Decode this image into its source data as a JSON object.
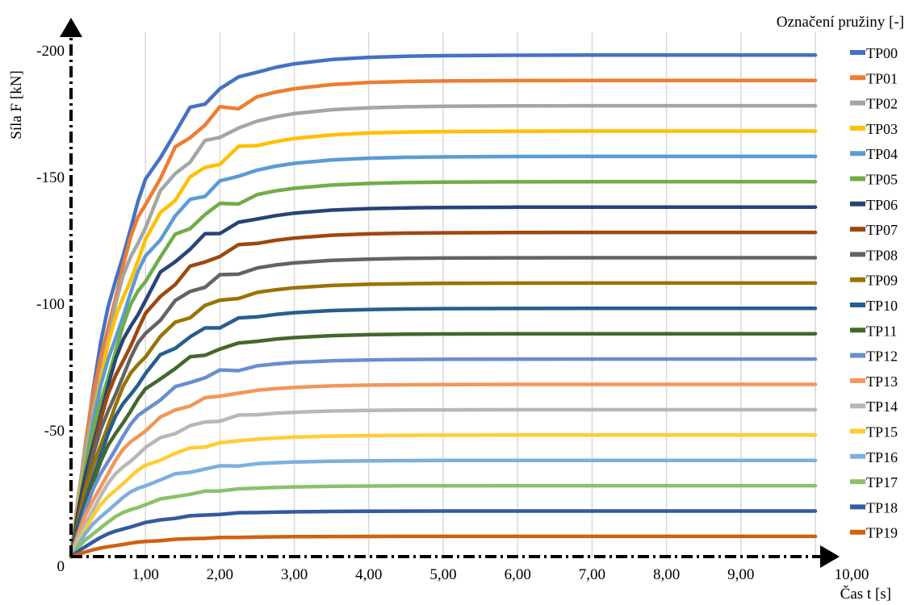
{
  "chart_data": {
    "type": "line",
    "ylabel": "Síla F [kN]",
    "xlabel": "Čas t [s]",
    "legend_title": "Označení pružiny [-]",
    "legend_position": "right",
    "grid": true,
    "xlim": [
      0,
      10
    ],
    "ylim": [
      0,
      -200
    ],
    "x_ticks": [
      1,
      2,
      3,
      4,
      5,
      6,
      7,
      8,
      9,
      10
    ],
    "x_tick_labels": [
      "1,00",
      "2,00",
      "3,00",
      "4,00",
      "5,00",
      "6,00",
      "7,00",
      "8,00",
      "9,00",
      "10,00"
    ],
    "y_ticks": [
      0,
      -50,
      -100,
      -150,
      -200
    ],
    "y_tick_labels": [
      "0",
      "-50",
      "-100",
      "-150",
      "-200"
    ],
    "x": [
      0,
      0.1,
      0.2,
      0.3,
      0.4,
      0.5,
      0.6,
      0.7,
      0.8,
      0.9,
      1.0,
      1.2,
      1.4,
      1.6,
      1.8,
      2.0,
      2.25,
      2.5,
      2.75,
      3.0,
      3.5,
      4.0,
      4.5,
      5.0,
      6.0,
      7.0,
      8.0,
      9.0,
      10.0
    ],
    "series": [
      {
        "name": "TP00",
        "color": "#4472C4",
        "final": -198
      },
      {
        "name": "TP01",
        "color": "#ED7D31",
        "final": -188
      },
      {
        "name": "TP02",
        "color": "#A5A5A5",
        "final": -178
      },
      {
        "name": "TP03",
        "color": "#FFC000",
        "final": -168
      },
      {
        "name": "TP04",
        "color": "#5B9BD5",
        "final": -158
      },
      {
        "name": "TP05",
        "color": "#70AD47",
        "final": -148
      },
      {
        "name": "TP06",
        "color": "#264478",
        "final": -138
      },
      {
        "name": "TP07",
        "color": "#9E480E",
        "final": -128
      },
      {
        "name": "TP08",
        "color": "#636363",
        "final": -118
      },
      {
        "name": "TP09",
        "color": "#997300",
        "final": -108
      },
      {
        "name": "TP10",
        "color": "#255E91",
        "final": -98
      },
      {
        "name": "TP11",
        "color": "#43682B",
        "final": -88
      },
      {
        "name": "TP12",
        "color": "#698ED0",
        "final": -78
      },
      {
        "name": "TP13",
        "color": "#F1975A",
        "final": -68
      },
      {
        "name": "TP14",
        "color": "#B7B7B7",
        "final": -58
      },
      {
        "name": "TP15",
        "color": "#FFCD33",
        "final": -48
      },
      {
        "name": "TP16",
        "color": "#7CAFDD",
        "final": -38
      },
      {
        "name": "TP17",
        "color": "#8CC168",
        "final": -28
      },
      {
        "name": "TP18",
        "color": "#335AA1",
        "final": -18
      },
      {
        "name": "TP19",
        "color": "#D26012",
        "final": -8
      }
    ]
  }
}
